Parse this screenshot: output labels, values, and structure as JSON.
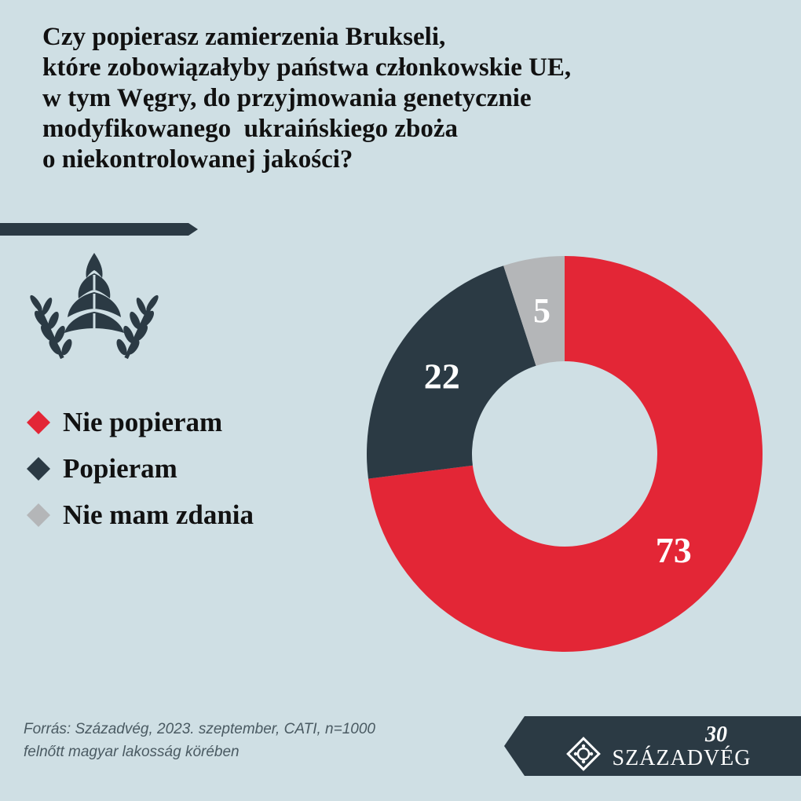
{
  "title_lines": [
    "Czy popierasz zamierzenia Brukseli,",
    "które zobowiązałyby państwa członkowskie UE,",
    "w tym Węgry, do przyjmowania genetycznie",
    "modyfikowanego  ukraińskiego zboża",
    "o niekontrolowanej jakości?"
  ],
  "legend": [
    {
      "label": "Nie popieram",
      "color": "#e32636"
    },
    {
      "label": "Popieram",
      "color": "#2b3a44"
    },
    {
      "label": "Nie mam zdania",
      "color": "#b4b6b8"
    }
  ],
  "chart_data": {
    "type": "pie",
    "categories": [
      "Nie popieram",
      "Popieram",
      "Nie mam zdania"
    ],
    "values": [
      73,
      22,
      5
    ],
    "colors": [
      "#e32636",
      "#2b3a44",
      "#b4b6b8"
    ],
    "data_labels": [
      "73",
      "22",
      "5"
    ],
    "style": "donut",
    "legend_position": "left"
  },
  "source_lines": [
    "Forrás: Századvég, 2023. szeptember, CATI, n=1000",
    "felnőtt magyar lakosság körében"
  ],
  "logo": {
    "name": "SZÁZADVÉG",
    "anniversary": "30"
  },
  "icons": [
    "wheat-hop-icon",
    "diamond-icon",
    "logo-emblem-icon"
  ]
}
